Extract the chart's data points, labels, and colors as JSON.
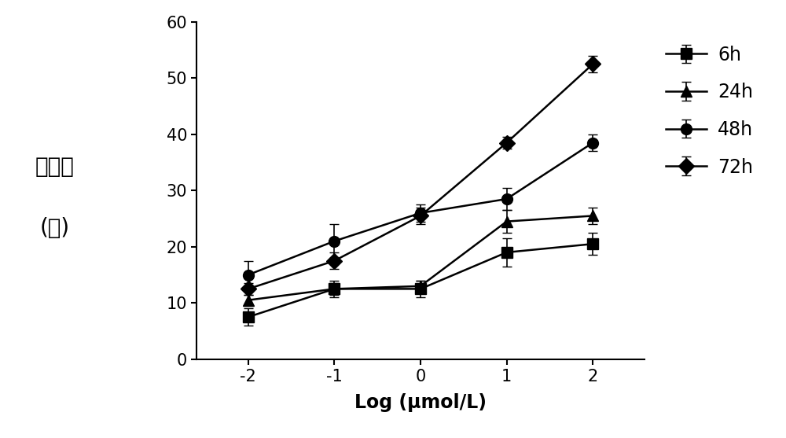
{
  "x": [
    -2,
    -1,
    0,
    1,
    2
  ],
  "series": {
    "6h": {
      "y": [
        7.5,
        12.5,
        12.5,
        19.0,
        20.5
      ],
      "yerr": [
        1.5,
        1.5,
        1.5,
        2.5,
        2.0
      ],
      "marker": "s",
      "label": "6h"
    },
    "24h": {
      "y": [
        10.5,
        12.5,
        13.0,
        24.5,
        25.5
      ],
      "yerr": [
        1.0,
        1.0,
        1.0,
        2.0,
        1.5
      ],
      "marker": "^",
      "label": "24h"
    },
    "48h": {
      "y": [
        15.0,
        21.0,
        26.0,
        28.5,
        38.5
      ],
      "yerr": [
        2.5,
        3.0,
        1.5,
        2.0,
        1.5
      ],
      "marker": "o",
      "label": "48h"
    },
    "72h": {
      "y": [
        12.5,
        17.5,
        25.5,
        38.5,
        52.5
      ],
      "yerr": [
        1.0,
        1.5,
        1.5,
        1.0,
        1.5
      ],
      "marker": "D",
      "label": "72h"
    }
  },
  "xlabel": "Log (μmol/L)",
  "ylabel_line1": "抑制率",
  "ylabel_line2": "(％)",
  "ylim": [
    0,
    60
  ],
  "yticks": [
    0,
    10,
    20,
    30,
    40,
    50,
    60
  ],
  "xticks": [
    -2,
    -1,
    0,
    1,
    2
  ],
  "line_color": "#000000",
  "background_color": "#ffffff",
  "legend_order": [
    "6h",
    "24h",
    "48h",
    "72h"
  ],
  "markersize": 10,
  "linewidth": 1.8,
  "capsize": 4,
  "elinewidth": 1.2
}
